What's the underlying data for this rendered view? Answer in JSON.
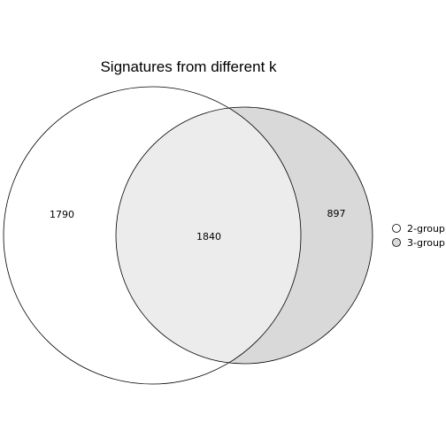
{
  "title": "Signatures from different k",
  "sets": [
    {
      "name": "2-group",
      "fill": "#ffffff"
    },
    {
      "name": "3-group",
      "fill": "#d9d9d9"
    }
  ],
  "regions": {
    "only_2group": "1790",
    "overlap": "1840",
    "only_3group": "897"
  },
  "colors": {
    "overlap_fill": "#ececec",
    "stroke": "#000000"
  }
}
